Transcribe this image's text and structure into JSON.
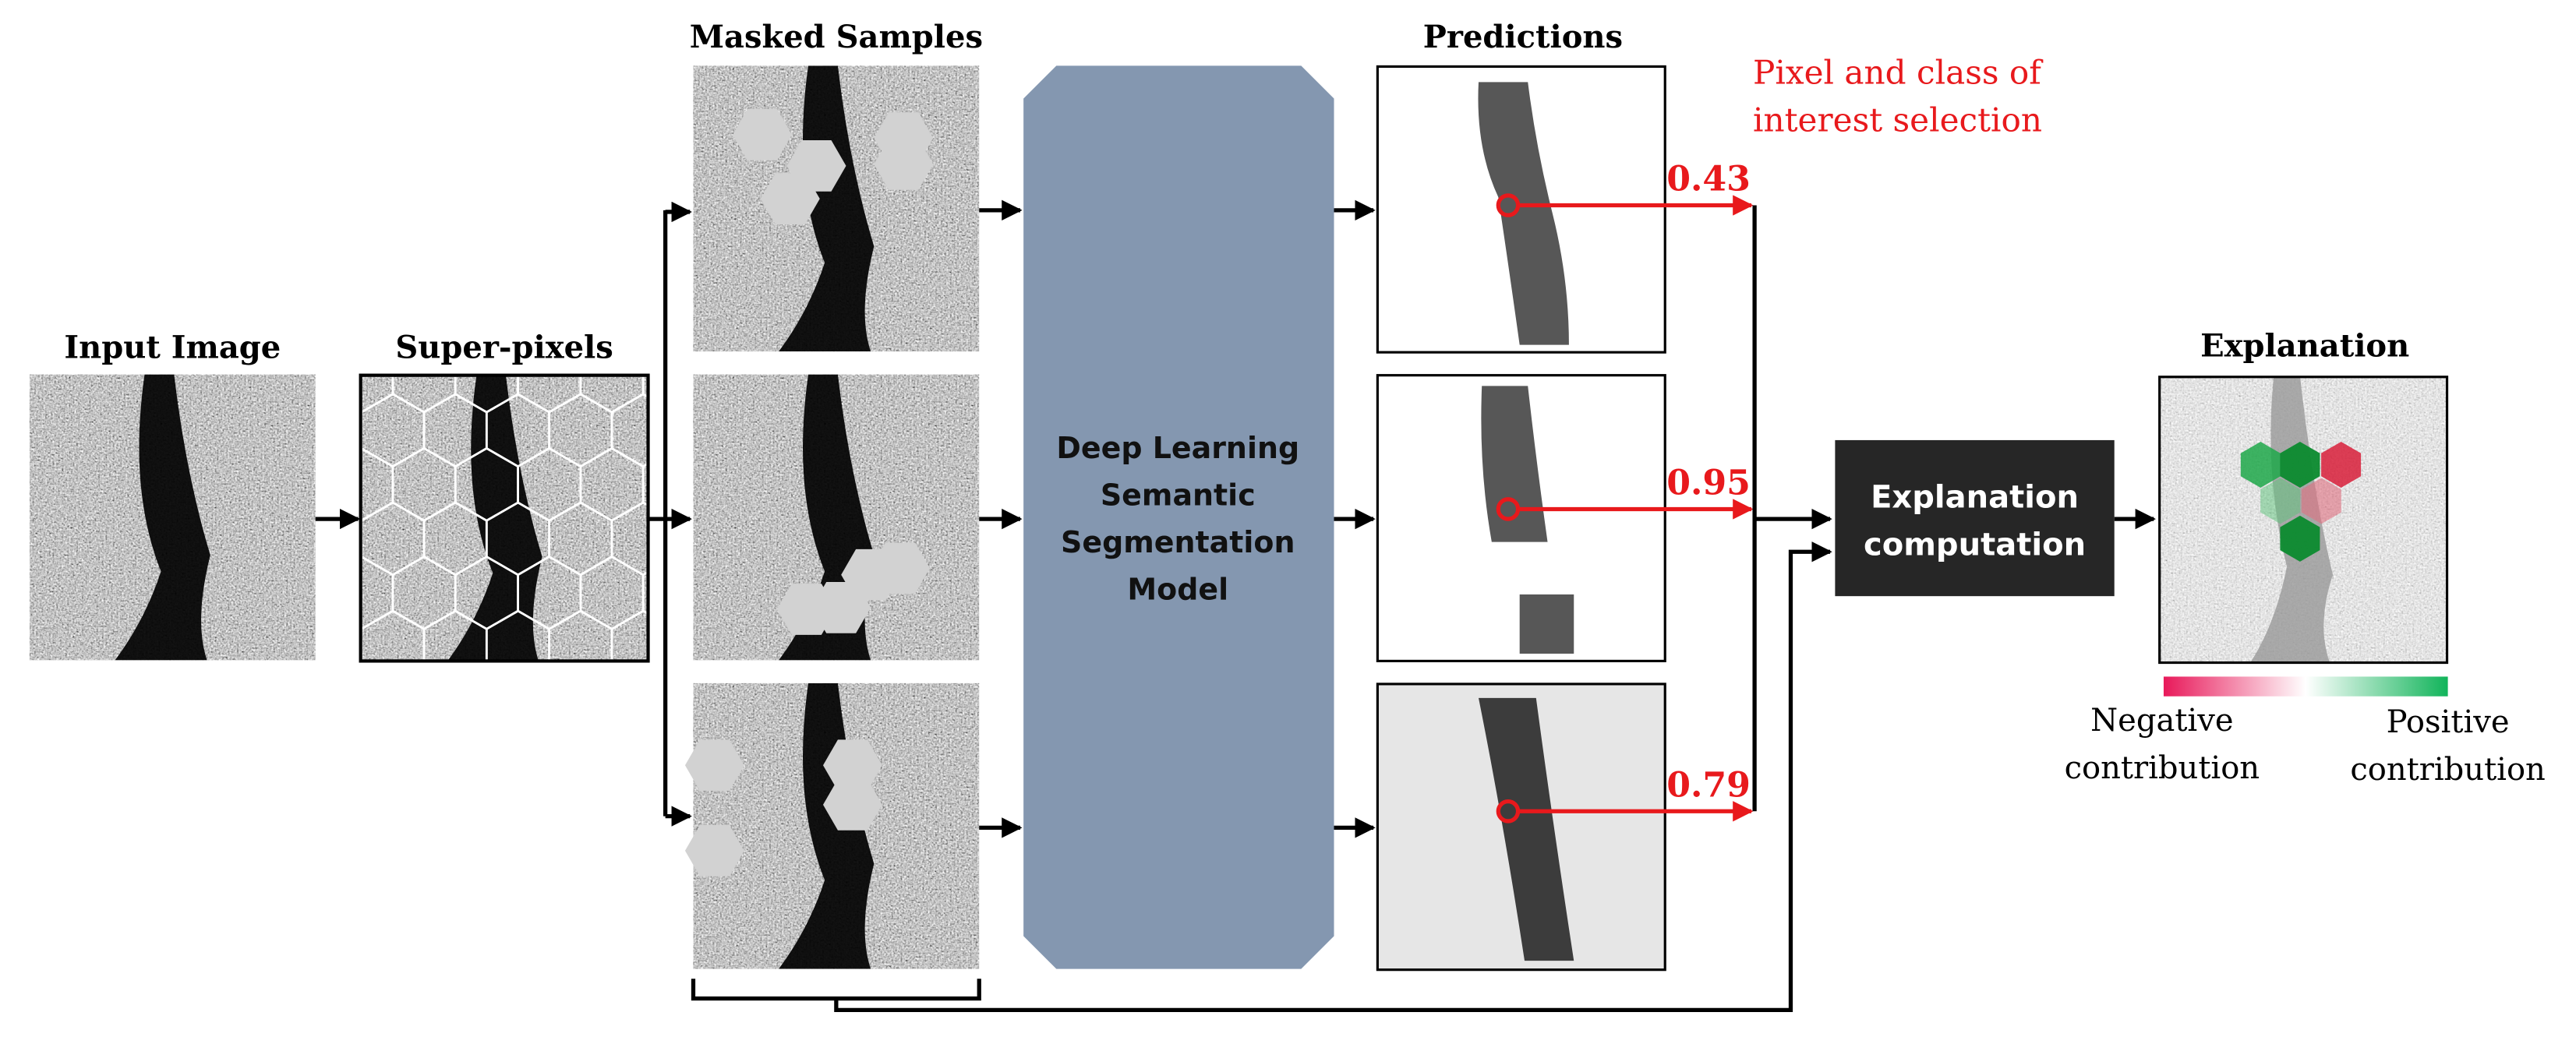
{
  "titles": {
    "input": "Input Image",
    "superpixels": "Super-pixels",
    "masked": "Masked Samples",
    "predictions": "Predictions",
    "explanation": "Explanation"
  },
  "model": {
    "label": [
      "Deep Learning",
      "Semantic",
      "Segmentation",
      "Model"
    ]
  },
  "selection_note": [
    "Pixel and class of",
    "interest selection"
  ],
  "scores": [
    "0.43",
    "0.95",
    "0.79"
  ],
  "explanation_box": [
    "Explanation",
    "computation"
  ],
  "legend": {
    "negative": [
      "Negative",
      "contribution"
    ],
    "positive": [
      "Positive",
      "contribution"
    ]
  }
}
